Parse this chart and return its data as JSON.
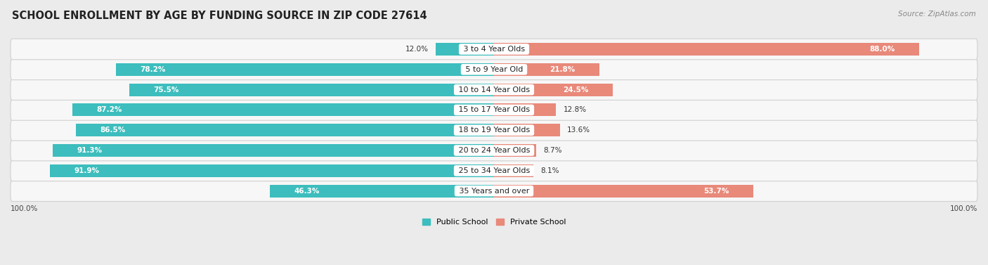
{
  "title": "SCHOOL ENROLLMENT BY AGE BY FUNDING SOURCE IN ZIP CODE 27614",
  "source": "Source: ZipAtlas.com",
  "categories": [
    "3 to 4 Year Olds",
    "5 to 9 Year Old",
    "10 to 14 Year Olds",
    "15 to 17 Year Olds",
    "18 to 19 Year Olds",
    "20 to 24 Year Olds",
    "25 to 34 Year Olds",
    "35 Years and over"
  ],
  "public_pct": [
    12.0,
    78.2,
    75.5,
    87.2,
    86.5,
    91.3,
    91.9,
    46.3
  ],
  "private_pct": [
    88.0,
    21.8,
    24.5,
    12.8,
    13.6,
    8.7,
    8.1,
    53.7
  ],
  "public_color": "#3dbdbd",
  "private_color": "#e8897a",
  "bg_color": "#ebebeb",
  "row_bg_odd": "#f5f5f5",
  "row_bg_even": "#ebebeb",
  "bar_height": 0.62,
  "legend_labels": [
    "Public School",
    "Private School"
  ],
  "title_fontsize": 10.5,
  "label_fontsize": 8.0,
  "source_fontsize": 7.5,
  "pct_fontsize": 7.5
}
